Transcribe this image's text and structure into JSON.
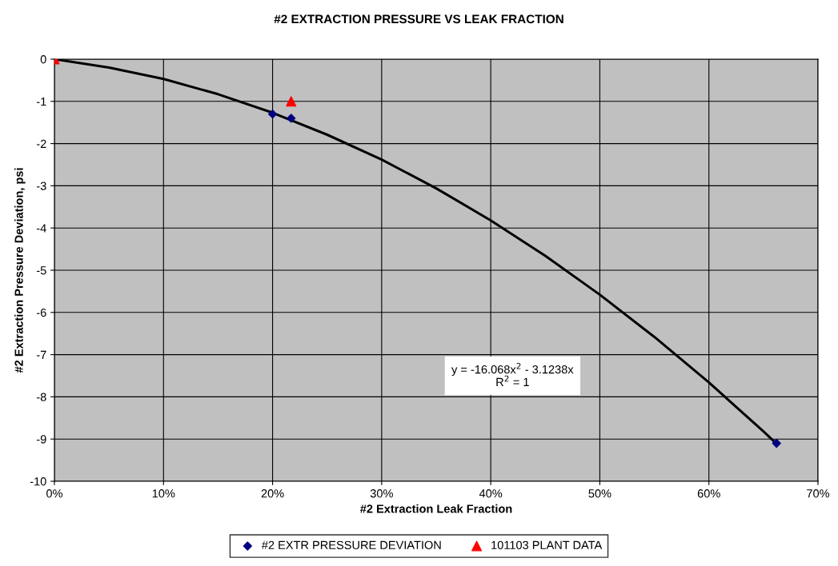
{
  "chart_data": {
    "type": "scatter",
    "title": "#2 EXTRACTION PRESSURE VS LEAK FRACTION",
    "xlabel": "#2 Extraction Leak Fraction",
    "ylabel": "#2 Extraction Pressure Deviation, psi",
    "series": [
      {
        "type": "line",
        "color": "#000000",
        "marker": "none",
        "x": [
          0,
          0.05,
          0.1,
          0.15,
          0.2,
          0.25,
          0.3,
          0.35,
          0.4,
          0.45,
          0.5,
          0.55,
          0.6,
          0.65,
          0.662
        ],
        "values": [
          0,
          -0.2,
          -0.47,
          -0.83,
          -1.27,
          -1.79,
          -2.38,
          -3.06,
          -3.82,
          -4.66,
          -5.58,
          -6.58,
          -7.66,
          -8.82,
          -9.11
        ]
      },
      {
        "name": "#2 EXTR PRESSURE DEVIATION",
        "color": "#000080",
        "marker": "diamond",
        "x": [
          0,
          0.2,
          0.217,
          0.662
        ],
        "values": [
          0,
          -1.3,
          -1.4,
          -9.1
        ]
      },
      {
        "name": "101103 PLANT DATA",
        "color": "#ff0000",
        "marker": "triangle",
        "x": [
          0,
          0.217
        ],
        "values": [
          0,
          -1.0
        ]
      }
    ],
    "xlim": [
      0,
      0.7
    ],
    "xticks": [
      {
        "value": 0,
        "label": "0%"
      },
      {
        "value": 0.1,
        "label": "10%"
      },
      {
        "value": 0.2,
        "label": "20%"
      },
      {
        "value": 0.3,
        "label": "30%"
      },
      {
        "value": 0.4,
        "label": "40%"
      },
      {
        "value": 0.5,
        "label": "50%"
      },
      {
        "value": 0.6,
        "label": "60%"
      },
      {
        "value": 0.7,
        "label": "70%"
      }
    ],
    "ylim": [
      -10,
      0
    ],
    "yticks": [
      -10,
      -9,
      -8,
      -7,
      -6,
      -5,
      -4,
      -3,
      -2,
      -1,
      0
    ],
    "annotations": [
      "y = -16.068x$^{2}$ - 3.1238x\nR$^{2}$ = 1"
    ],
    "grid": true,
    "legend": "bottom"
  }
}
